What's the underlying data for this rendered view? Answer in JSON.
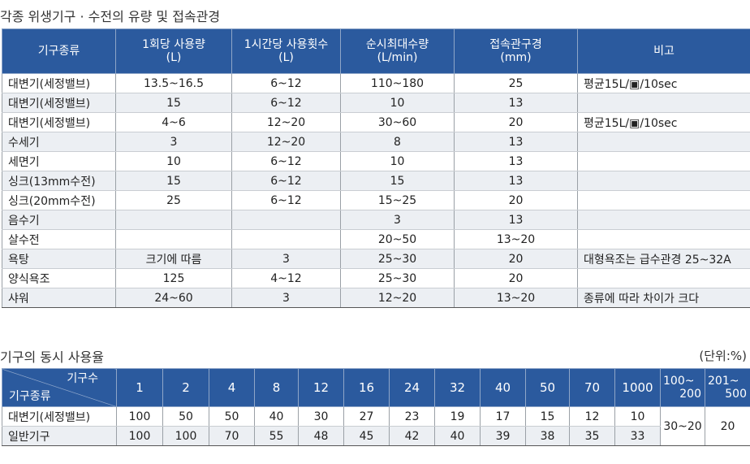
{
  "section1": {
    "title": "각종 위생기구 · 수전의 유량 및 접속관경",
    "headers": [
      {
        "line1": "기구종류",
        "line2": ""
      },
      {
        "line1": "1회당 사용량",
        "line2": "(L)"
      },
      {
        "line1": "1시간당 사용횟수",
        "line2": "(L)"
      },
      {
        "line1": "순시최대수량",
        "line2": "(L/min)"
      },
      {
        "line1": "접속관구경",
        "line2": "(mm)"
      },
      {
        "line1": "비고",
        "line2": ""
      }
    ],
    "rows": [
      [
        "대변기(세정밸브)",
        "13.5~16.5",
        "6~12",
        "110~180",
        "25",
        "평균15L/▣/10sec"
      ],
      [
        "대변기(세정밸브)",
        "15",
        "6~12",
        "10",
        "13",
        ""
      ],
      [
        "대변기(세정밸브)",
        "4~6",
        "12~20",
        "30~60",
        "20",
        "평균15L/▣/10sec"
      ],
      [
        "수세기",
        "3",
        "12~20",
        "8",
        "13",
        ""
      ],
      [
        "세면기",
        "10",
        "6~12",
        "10",
        "13",
        ""
      ],
      [
        "싱크(13mm수전)",
        "15",
        "6~12",
        "15",
        "13",
        ""
      ],
      [
        "싱크(20mm수전)",
        "25",
        "6~12",
        "15~25",
        "20",
        ""
      ],
      [
        "음수기",
        "",
        "",
        "3",
        "13",
        ""
      ],
      [
        "살수전",
        "",
        "",
        "20~50",
        "13~20",
        ""
      ],
      [
        "욕탕",
        "크기에 따름",
        "3",
        "25~30",
        "20",
        "대형욕조는 급수관경 25~32A"
      ],
      [
        "양식욕조",
        "125",
        "4~12",
        "25~30",
        "20",
        ""
      ],
      [
        "샤워",
        "24~60",
        "3",
        "12~20",
        "13~20",
        "종류에 따라 차이가 크다"
      ]
    ]
  },
  "section2": {
    "title": "기구의 동시 사용율",
    "unit": "(단위:%)",
    "corner_top": "기구수",
    "corner_bottom": "기구종류",
    "counts": [
      "1",
      "2",
      "4",
      "8",
      "12",
      "16",
      "24",
      "32",
      "40",
      "50",
      "70",
      "1000"
    ],
    "range_headers": [
      {
        "line1": "100~",
        "line2": "200"
      },
      {
        "line1": "201~",
        "line2": "500"
      }
    ],
    "rows": [
      {
        "name": "대변기(세정밸브)",
        "values": [
          "100",
          "50",
          "50",
          "40",
          "30",
          "27",
          "23",
          "19",
          "17",
          "15",
          "12",
          "10"
        ]
      },
      {
        "name": "일반기구",
        "values": [
          "100",
          "100",
          "70",
          "55",
          "48",
          "45",
          "42",
          "40",
          "39",
          "38",
          "35",
          "33"
        ]
      }
    ],
    "merged_values": [
      "30~20",
      "20"
    ]
  },
  "colors": {
    "header_bg": "#2b5a9e",
    "row_shade": "#eceff3"
  }
}
